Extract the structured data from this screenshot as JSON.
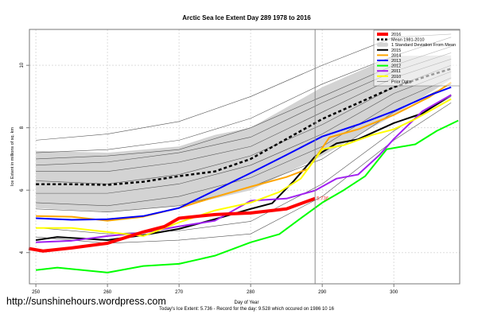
{
  "chart_data": {
    "type": "line",
    "title": "Arctic Sea Ice Extent Day 289 1978 to 2016",
    "xlabel": "Day of Year",
    "ylabel": "Ice Extent in millions of sq. km",
    "subtitle": "Today's Ice Extent: 5.736  - Record for the day: 9.528 which occured on 1986 10 16",
    "xlim": [
      249.1,
      309.2
    ],
    "ylim": [
      3.0,
      11.15
    ],
    "xticks": [
      250,
      260,
      270,
      280,
      290,
      300
    ],
    "yticks": [
      4,
      6,
      8,
      10
    ],
    "grid": true,
    "legend_position": "top-right",
    "current_day": 289,
    "annotation": {
      "text": "5.736",
      "x": 289,
      "y": 5.736
    },
    "sd_band": {
      "name": "1 Standard Deviation From Mean",
      "color": "#d3d3d3",
      "days": [
        250,
        260,
        270,
        275,
        280,
        290,
        300,
        308
      ],
      "upper": [
        7.26,
        7.2,
        7.4,
        7.77,
        8.0,
        9.3,
        10.3,
        10.32
      ],
      "lower": [
        5.43,
        5.3,
        5.5,
        5.73,
        6.0,
        7.1,
        8.4,
        9.55
      ]
    },
    "series": [
      {
        "name": "2016",
        "color": "#ff0000",
        "width": 4,
        "days": [
          249,
          251,
          255,
          260,
          265,
          268,
          270,
          275,
          280,
          285,
          289
        ],
        "values": [
          4.13,
          4.05,
          4.15,
          4.3,
          4.66,
          4.84,
          5.1,
          5.22,
          5.27,
          5.4,
          5.736
        ]
      },
      {
        "name": "Mean 1981-2010",
        "color": "#000000",
        "width": 2.5,
        "dash": true,
        "days": [
          250,
          255,
          260,
          265,
          270,
          275,
          280,
          285,
          290,
          295,
          300,
          305,
          308
        ],
        "values": [
          6.19,
          6.19,
          6.17,
          6.27,
          6.45,
          6.6,
          7.0,
          7.64,
          8.28,
          8.79,
          9.3,
          9.68,
          9.89
        ]
      },
      {
        "name": "2015",
        "color": "#000000",
        "width": 2,
        "days": [
          250,
          253,
          260,
          265,
          270,
          275,
          280,
          283,
          286,
          289,
          292,
          295,
          300,
          304,
          308
        ],
        "values": [
          4.4,
          4.5,
          4.4,
          4.56,
          4.76,
          5.07,
          5.4,
          5.58,
          6.29,
          7.08,
          7.5,
          7.63,
          8.15,
          8.46,
          9.05
        ]
      },
      {
        "name": "2014",
        "color": "#ffa500",
        "width": 2,
        "days": [
          250,
          255,
          260,
          265,
          270,
          275,
          280,
          285,
          288,
          291,
          295,
          300,
          305,
          308
        ],
        "values": [
          5.17,
          5.15,
          5.02,
          5.15,
          5.43,
          5.78,
          6.11,
          6.42,
          6.68,
          7.69,
          7.95,
          8.41,
          8.99,
          9.45
        ]
      },
      {
        "name": "2013",
        "color": "#0000ff",
        "width": 2,
        "days": [
          250,
          255,
          260,
          265,
          270,
          275,
          280,
          285,
          290,
          295,
          300,
          305,
          308
        ],
        "values": [
          5.1,
          5.05,
          5.07,
          5.17,
          5.43,
          5.99,
          6.55,
          7.13,
          7.72,
          8.1,
          8.53,
          9.04,
          9.3
        ]
      },
      {
        "name": "2012",
        "color": "#00ff00",
        "width": 2,
        "days": [
          250,
          253,
          260,
          265,
          270,
          275,
          280,
          284,
          287,
          290,
          293,
          296,
          299,
          303,
          306,
          309
        ],
        "values": [
          3.44,
          3.52,
          3.36,
          3.57,
          3.64,
          3.9,
          4.33,
          4.59,
          5.1,
          5.6,
          6.0,
          6.45,
          7.31,
          7.47,
          7.9,
          8.23
        ]
      },
      {
        "name": "2011",
        "color": "#a020f0",
        "width": 2,
        "days": [
          250,
          255,
          260,
          265,
          270,
          275,
          280,
          285,
          289,
          292,
          295,
          298,
          300,
          304,
          308
        ],
        "values": [
          4.33,
          4.38,
          4.53,
          4.64,
          4.84,
          5.02,
          5.66,
          5.73,
          5.99,
          6.37,
          6.5,
          7.13,
          7.64,
          8.53,
          9.05
        ]
      },
      {
        "name": "2010",
        "color": "#ffff00",
        "width": 2,
        "days": [
          250,
          255,
          260,
          265,
          270,
          275,
          280,
          284,
          287,
          290,
          293,
          297,
          300,
          303,
          308
        ],
        "values": [
          4.79,
          4.79,
          4.66,
          4.53,
          4.97,
          5.35,
          5.6,
          5.94,
          6.37,
          7.31,
          7.44,
          7.77,
          7.95,
          8.28,
          8.92
        ]
      }
    ],
    "prior_data": {
      "name": "Prior Data",
      "color": "#555555",
      "days": [
        250,
        260,
        270,
        280,
        290,
        300,
        308
      ],
      "lines": [
        [
          7.2,
          7.3,
          7.6,
          8.3,
          9.4,
          10.3,
          10.9
        ],
        [
          7.0,
          7.1,
          7.3,
          8.0,
          9.0,
          10.0,
          10.6
        ],
        [
          6.8,
          6.9,
          7.2,
          7.7,
          8.8,
          9.8,
          10.4
        ],
        [
          6.6,
          6.6,
          6.9,
          7.4,
          8.5,
          9.6,
          10.2
        ],
        [
          6.3,
          6.2,
          6.5,
          7.1,
          8.1,
          9.3,
          10.0
        ],
        [
          5.9,
          5.9,
          6.2,
          6.8,
          7.8,
          9.1,
          9.8
        ],
        [
          5.6,
          5.5,
          5.8,
          6.4,
          7.4,
          8.8,
          9.6
        ],
        [
          5.4,
          5.3,
          5.5,
          6.1,
          7.0,
          8.5,
          9.4
        ],
        [
          4.8,
          4.6,
          4.7,
          5.0,
          6.2,
          7.9,
          9.0
        ],
        [
          4.5,
          4.3,
          4.4,
          4.6,
          5.8,
          7.6,
          8.8
        ],
        [
          7.6,
          7.8,
          8.2,
          9.0,
          10.0,
          10.9,
          11.0
        ]
      ]
    },
    "legend": [
      "2016",
      "Mean 1981-2010",
      "1 Standard Deviation From Mean",
      "2015",
      "2014",
      "2013",
      "2012",
      "2011",
      "2010",
      "Prior Data"
    ]
  },
  "watermark": "http://sunshinehours.wordpress.com"
}
